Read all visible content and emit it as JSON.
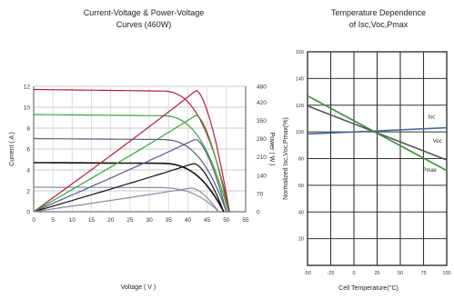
{
  "chart_data": [
    {
      "type": "line",
      "title": "Current-Voltage & Power-Voltage Curves (460W)",
      "title_lines": [
        "Current-Voltage & Power-Voltage",
        "Curves (460W)"
      ],
      "xlabel": "Voltage ( V )",
      "ylabel": "Current ( A )",
      "y2label": "Power ( W )",
      "xlim": [
        0,
        55
      ],
      "ylim": [
        0,
        12
      ],
      "y2lim": [
        0,
        480
      ],
      "xticks": [
        "0",
        "5",
        "10",
        "15",
        "20",
        "25",
        "30",
        "35",
        "40",
        "45",
        "50",
        "55"
      ],
      "yticks": [
        "0",
        "2",
        "4",
        "6",
        "8",
        "10",
        "12"
      ],
      "y2ticks": [
        "0",
        "70",
        "140",
        "210",
        "280",
        "350",
        "420",
        "480"
      ],
      "grid": true,
      "series": [
        {
          "kind": "iv",
          "isc": 11.7,
          "voc": 50.8,
          "vmp": 42.2,
          "imp": 11.1,
          "color": "#b01e3c"
        },
        {
          "kind": "iv",
          "isc": 9.3,
          "voc": 50.5,
          "vmp": 42.2,
          "imp": 8.85,
          "color": "#3aa33a"
        },
        {
          "kind": "iv",
          "isc": 7.0,
          "voc": 50.0,
          "vmp": 42.0,
          "imp": 6.65,
          "color": "#5a5a8a"
        },
        {
          "kind": "iv",
          "isc": 4.7,
          "voc": 49.3,
          "vmp": 41.6,
          "imp": 4.45,
          "color": "#111111"
        },
        {
          "kind": "iv",
          "isc": 2.35,
          "voc": 48.0,
          "vmp": 41.0,
          "imp": 2.2,
          "color": "#8a8aa8"
        },
        {
          "kind": "pv",
          "pmax": 465,
          "vmp": 42.2,
          "voc": 50.8,
          "color": "#b01e3c"
        },
        {
          "kind": "pv",
          "pmax": 370,
          "vmp": 42.2,
          "voc": 50.5,
          "color": "#3aa33a"
        },
        {
          "kind": "pv",
          "pmax": 278,
          "vmp": 42.0,
          "voc": 50.0,
          "color": "#5a5a8a"
        },
        {
          "kind": "pv",
          "pmax": 185,
          "vmp": 41.6,
          "voc": 49.3,
          "color": "#111111"
        },
        {
          "kind": "pv",
          "pmax": 91,
          "vmp": 41.0,
          "voc": 48.0,
          "color": "#8a8aa8"
        }
      ]
    },
    {
      "type": "line",
      "title": "Temperature Dependence of Isc,Voc,Pmax",
      "title_lines": [
        "Temperature Dependence",
        "of Isc,Voc,Pmax"
      ],
      "xlabel": "Cell Temperature(°C)",
      "ylabel": "Normalized Isc,Voc,Pmax(%)",
      "xlim": [
        -50,
        100
      ],
      "ylim": [
        0,
        160
      ],
      "xticks": [
        "-50",
        "-25",
        "0",
        "25",
        "50",
        "75",
        "100"
      ],
      "yticks": [
        "20",
        "40",
        "60",
        "80",
        "100",
        "120",
        "140",
        "160"
      ],
      "grid": true,
      "series": [
        {
          "name": "Isc",
          "x": [
            -50,
            100
          ],
          "y": [
            98.4,
            103.1
          ],
          "color": "#4a6a9a"
        },
        {
          "name": "Voc",
          "x": [
            -50,
            100
          ],
          "y": [
            119.5,
            79.0
          ],
          "color": "#555555"
        },
        {
          "name": "Pmax",
          "x": [
            -50,
            100
          ],
          "y": [
            127.0,
            71.0
          ],
          "color": "#3e8a3e"
        }
      ]
    }
  ]
}
